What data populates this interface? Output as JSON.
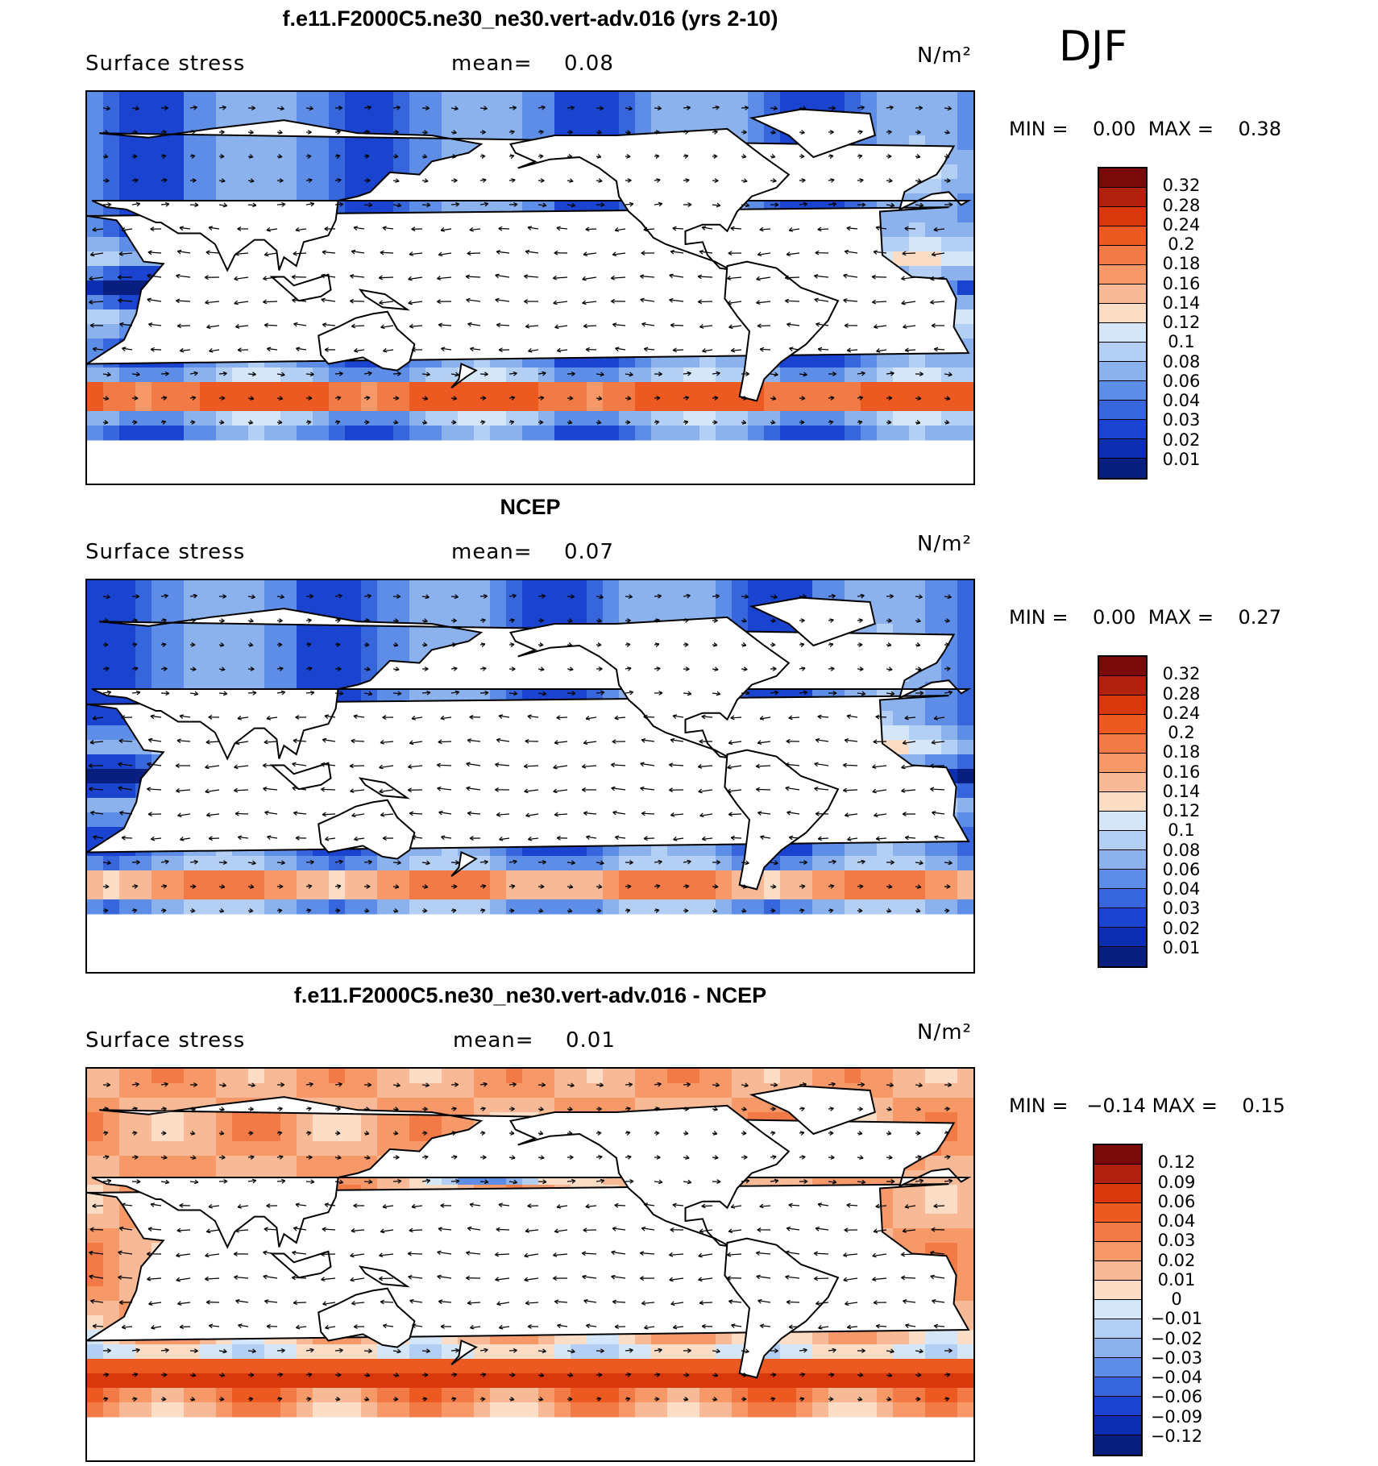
{
  "season": "DJF",
  "panels": [
    {
      "title": "f.e11.F2000C5.ne30_ne30.vert-adv.016 (yrs 2-10)",
      "variable": "Surface stress",
      "mean_label": "mean=",
      "mean_value": "0.08",
      "units": "N/m²",
      "min_label": "MIN =",
      "min_value": "0.00",
      "max_label": "MAX =",
      "max_value": "0.38",
      "scheme": "abs",
      "field_max": 0.38
    },
    {
      "title": "NCEP",
      "variable": "Surface stress",
      "mean_label": "mean=",
      "mean_value": "0.07",
      "units": "N/m²",
      "min_label": "MIN =",
      "min_value": "0.00",
      "max_label": "MAX =",
      "max_value": "0.27",
      "scheme": "abs",
      "field_max": 0.27
    },
    {
      "title": "f.e11.F2000C5.ne30_ne30.vert-adv.016 - NCEP",
      "variable": "Surface stress",
      "mean_label": "mean=",
      "mean_value": "0.01",
      "units": "N/m²",
      "min_label": "MIN =",
      "min_value": "−0.14",
      "max_label": "MAX =",
      "max_value": "0.15",
      "scheme": "diff",
      "field_max": 0.15
    }
  ],
  "colorbars": {
    "abs": {
      "ticks": [
        "0.32",
        "0.28",
        "0.24",
        "0.2",
        "0.18",
        "0.16",
        "0.14",
        "0.12",
        "0.1",
        "0.08",
        "0.06",
        "0.04",
        "0.03",
        "0.02",
        "0.01"
      ],
      "colors": [
        "#7a0a0a",
        "#b0220e",
        "#d8380c",
        "#ec5a22",
        "#f27a46",
        "#f69868",
        "#f8b996",
        "#fbdcc4",
        "#d4e6f8",
        "#b4cff4",
        "#8cb2ee",
        "#5d8de6",
        "#3665dc",
        "#1a44d0",
        "#0c2fb2",
        "#081f80"
      ]
    },
    "diff": {
      "ticks": [
        "0.12",
        "0.09",
        "0.06",
        "0.04",
        "0.03",
        "0.02",
        "0.01",
        "0",
        "−0.01",
        "−0.02",
        "−0.03",
        "−0.04",
        "−0.06",
        "−0.09",
        "−0.12"
      ],
      "colors": [
        "#7a0a0a",
        "#b0220e",
        "#d8380c",
        "#ec5a22",
        "#f27a46",
        "#f69868",
        "#f8b996",
        "#fbdcc4",
        "#d4e6f8",
        "#b4cff4",
        "#8cb2ee",
        "#5d8de6",
        "#3665dc",
        "#1a44d0",
        "#0c2fb2",
        "#081f80"
      ]
    }
  },
  "chart_data": [
    {
      "type": "heatmap",
      "title": "f.e11.F2000C5.ne30_ne30.vert-adv.016 (yrs 2-10)",
      "subtitle": "Surface stress",
      "units": "N/m²",
      "mean": 0.08,
      "min": 0.0,
      "max": 0.38,
      "season": "DJF",
      "contour_levels": [
        0.01,
        0.02,
        0.03,
        0.04,
        0.06,
        0.08,
        0.1,
        0.12,
        0.14,
        0.16,
        0.18,
        0.2,
        0.24,
        0.28,
        0.32
      ],
      "overlay": "wind stress vectors"
    },
    {
      "type": "heatmap",
      "title": "NCEP",
      "subtitle": "Surface stress",
      "units": "N/m²",
      "mean": 0.07,
      "min": 0.0,
      "max": 0.27,
      "season": "DJF",
      "contour_levels": [
        0.01,
        0.02,
        0.03,
        0.04,
        0.06,
        0.08,
        0.1,
        0.12,
        0.14,
        0.16,
        0.18,
        0.2,
        0.24,
        0.28,
        0.32
      ],
      "overlay": "wind stress vectors"
    },
    {
      "type": "heatmap",
      "title": "f.e11.F2000C5.ne30_ne30.vert-adv.016 - NCEP",
      "subtitle": "Surface stress",
      "units": "N/m²",
      "mean": 0.01,
      "min": -0.14,
      "max": 0.15,
      "season": "DJF",
      "contour_levels": [
        -0.12,
        -0.09,
        -0.06,
        -0.04,
        -0.03,
        -0.02,
        -0.01,
        0,
        0.01,
        0.02,
        0.03,
        0.04,
        0.06,
        0.09,
        0.12
      ],
      "overlay": "wind stress vectors"
    }
  ]
}
